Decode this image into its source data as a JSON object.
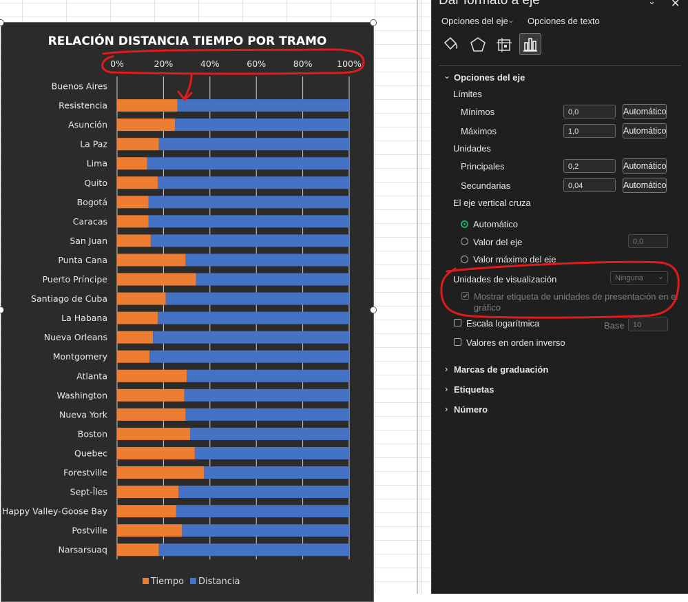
{
  "chart_data": {
    "type": "bar",
    "orientation": "horizontal",
    "stacked": "percent",
    "title": "RELACIÓN DISTANCIA TIEMPO POR TRAMO",
    "categories": [
      "Buenos Aires",
      "Resistencia",
      "Asunción",
      "La Paz",
      "Lima",
      "Quito",
      "Bogotá",
      "Caracas",
      "San Juan",
      "Punta Cana",
      "Puerto Príncipe",
      "Santiago de Cuba",
      "La Habana",
      "Nueva Orleans",
      "Montgomery",
      "Atlanta",
      "Washington",
      "Nueva York",
      "Boston",
      "Quebec",
      "Forestville",
      "Sept-Îles",
      "Happy Valley-Goose Bay",
      "Postville",
      "Narsarsuaq"
    ],
    "series": [
      {
        "name": "Tiempo",
        "color": "#ed7d31",
        "values": [
          0,
          0.26,
          0.25,
          0.18,
          0.13,
          0.175,
          0.135,
          0.135,
          0.145,
          0.295,
          0.34,
          0.21,
          0.175,
          0.155,
          0.14,
          0.3,
          0.29,
          0.295,
          0.315,
          0.335,
          0.375,
          0.265,
          0.255,
          0.28,
          0.18
        ]
      },
      {
        "name": "Distancia",
        "color": "#4472c4",
        "values": [
          0,
          0.74,
          0.75,
          0.82,
          0.87,
          0.825,
          0.865,
          0.865,
          0.855,
          0.705,
          0.66,
          0.79,
          0.825,
          0.845,
          0.86,
          0.7,
          0.71,
          0.705,
          0.685,
          0.665,
          0.625,
          0.735,
          0.745,
          0.72,
          0.82
        ]
      }
    ],
    "x_axis": {
      "position": "top",
      "min": 0,
      "max": 1,
      "major": 0.2,
      "tick_labels": [
        "0%",
        "20%",
        "40%",
        "60%",
        "80%",
        "100%"
      ]
    },
    "grid": true,
    "legend": "bottom",
    "annotation": "red hand-drawn circle around top axis with arrow"
  },
  "panel": {
    "title": "Dar formato a eje",
    "tab_axis": "Opciones del eje",
    "tab_text": "Opciones de texto",
    "section_axis": "Opciones del eje",
    "limits": "Límites",
    "min_label": "Mínimos",
    "min_value": "0,0",
    "max_label": "Máximos",
    "max_value": "1,0",
    "auto": "Automático",
    "units": "Unidades",
    "major_label": "Principales",
    "major_value": "0,2",
    "minor_label": "Secundarias",
    "minor_value": "0,04",
    "vertical_cross": "El eje vertical cruza",
    "radio_auto": "Automático",
    "radio_value": "Valor del eje",
    "radio_value_field": "0,0",
    "radio_max": "Valor máximo del eje",
    "display_units": "Unidades de visualización",
    "display_units_value": "Ninguna",
    "show_units_label_1": "Mostrar etiqueta de unidades de presentación en el",
    "show_units_label_2": "gráfico",
    "log_scale": "Escala logarítmica",
    "base_label": "Base",
    "base_value": "10",
    "reverse": "Valores en orden inverso",
    "tick_marks": "Marcas de graduación",
    "labels": "Etiquetas",
    "number": "Número"
  }
}
